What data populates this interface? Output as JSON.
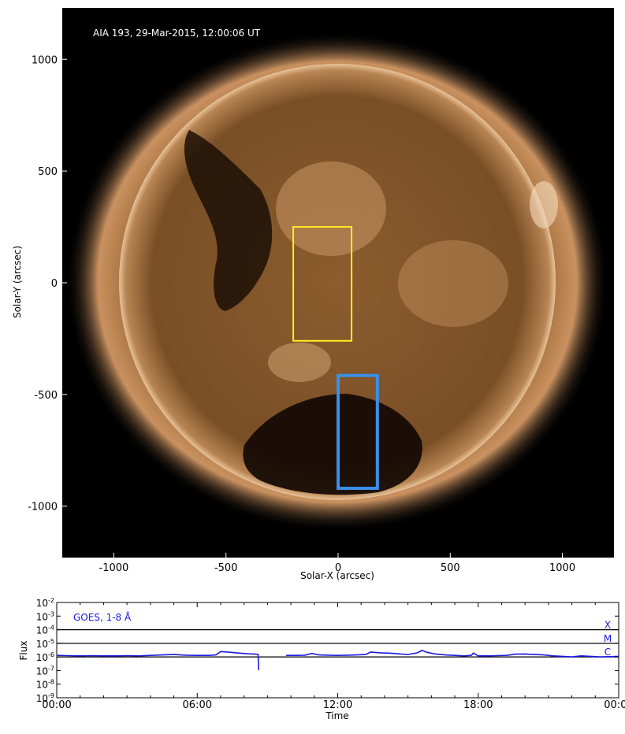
{
  "image_panel": {
    "caption": "AIA 193, 29-Mar-2015, 12:00:06 UT",
    "xlabel": "Solar-X (arcsec)",
    "ylabel": "Solar-Y (arcsec)",
    "x_ticks": [
      "-1000",
      "-500",
      "0",
      "500",
      "1000"
    ],
    "y_ticks": [
      "1000",
      "500",
      "0",
      "-500",
      "-1000"
    ],
    "background_color": "#000000",
    "disk_color": "#8a5a2b",
    "yellow_box_color": "#ffee22",
    "blue_box_color": "#3a8fe6",
    "yellow_box_arcsec": {
      "x": [
        -200,
        60
      ],
      "y": [
        -260,
        250
      ]
    },
    "blue_box_arcsec": {
      "x": [
        0,
        175
      ],
      "y": [
        -920,
        -415
      ]
    }
  },
  "chart_data": {
    "type": "line",
    "title": "GOES, 1-8 Å",
    "xlabel": "Time",
    "ylabel": "Flux",
    "x_tick_labels": [
      "00:00",
      "06:00",
      "12:00",
      "18:00",
      "00:00"
    ],
    "y_tick_exponents": [
      "-2",
      "-3",
      "-4",
      "-5",
      "-6",
      "-7",
      "-8",
      "-9"
    ],
    "y_tick_base": "10",
    "ylog": true,
    "ylim": [
      1e-09,
      0.01
    ],
    "xlim_hours": [
      0,
      24
    ],
    "class_levels": [
      {
        "label": "X",
        "flux": 0.0001
      },
      {
        "label": "M",
        "flux": 1e-05
      },
      {
        "label": "C",
        "flux": 1e-06
      }
    ],
    "series_color": "#1a1adf",
    "series": [
      {
        "x_hours": [
          0,
          0.5,
          1,
          1.5,
          2,
          2.5,
          3,
          3.5,
          4,
          4.5,
          5,
          5.5,
          6,
          6.5,
          6.8,
          7.0,
          7.4,
          7.8,
          8.2,
          8.5,
          8.6,
          8.62,
          8.65
        ],
        "flux": [
          1.3e-06,
          1.25e-06,
          1.2e-06,
          1.25e-06,
          1.2e-06,
          1.2e-06,
          1.25e-06,
          1.2e-06,
          1.3e-06,
          1.4e-06,
          1.5e-06,
          1.35e-06,
          1.3e-06,
          1.3e-06,
          1.4e-06,
          2.5e-06,
          2.2e-06,
          1.9e-06,
          1.7e-06,
          1.6e-06,
          1.55e-06,
          1.2e-07,
          1.2e-07
        ]
      },
      {
        "x_hours": [
          9.8,
          10.2,
          10.6,
          10.9,
          11.2,
          11.6,
          12.0,
          12.4,
          12.8,
          13.2,
          13.4,
          13.8,
          14.2,
          14.6,
          15.0,
          15.4,
          15.6,
          15.8,
          16.2,
          16.6,
          17.0,
          17.4,
          17.7,
          17.8,
          18.0,
          18.4,
          18.8,
          19.2,
          19.6,
          20.0,
          20.4,
          20.8,
          21.2,
          21.6,
          22.0,
          22.4,
          22.8,
          23.2,
          23.6,
          24.0
        ],
        "flux": [
          1.3e-06,
          1.3e-06,
          1.35e-06,
          1.8e-06,
          1.4e-06,
          1.35e-06,
          1.3e-06,
          1.35e-06,
          1.4e-06,
          1.5e-06,
          2.3e-06,
          2e-06,
          1.9e-06,
          1.7e-06,
          1.5e-06,
          2e-06,
          3e-06,
          2.2e-06,
          1.6e-06,
          1.4e-06,
          1.3e-06,
          1.2e-06,
          1.3e-06,
          1.9e-06,
          1.2e-06,
          1.2e-06,
          1.25e-06,
          1.3e-06,
          1.6e-06,
          1.65e-06,
          1.5e-06,
          1.4e-06,
          1.2e-06,
          1.1e-06,
          1e-06,
          1.2e-06,
          1.1e-06,
          1e-06,
          1.05e-06,
          1.1e-06
        ]
      }
    ]
  }
}
